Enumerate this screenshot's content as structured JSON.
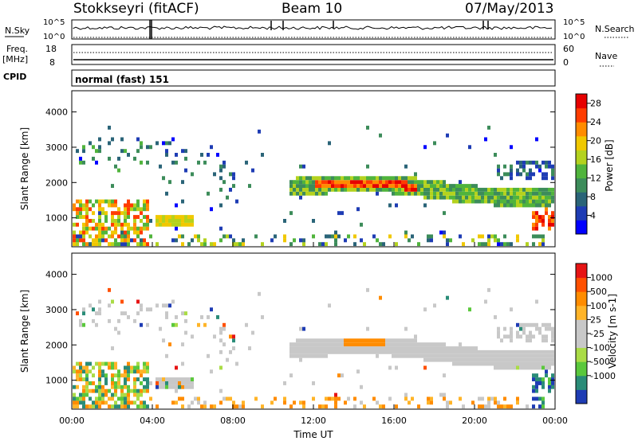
{
  "header": {
    "station": "Stokkseyri (fitACF)",
    "beam": "Beam 10",
    "date": "07/May/2013"
  },
  "side_labels": {
    "nsky": "N.Sky",
    "freq": "Freq.",
    "freq_unit": "[MHz]",
    "cpid": "CPID",
    "nsearch": "N.Search",
    "nave": "Nave"
  },
  "noise_axis": {
    "top": "10^5",
    "bottom": "10^0"
  },
  "freq_axis": {
    "left_top": "18",
    "left_bottom": "8",
    "right_top": "60",
    "right_bottom": "0"
  },
  "cpid_text": "normal (fast) 151",
  "x_axis": {
    "label": "Time UT",
    "ticks": [
      "00:00",
      "04:00",
      "08:00",
      "12:00",
      "16:00",
      "20:00",
      "00:00"
    ]
  },
  "chart_data": [
    {
      "type": "heatmap",
      "name": "power",
      "ylabel": "Slant Range [km]",
      "yticks": [
        "1000",
        "2000",
        "3000",
        "4000"
      ],
      "ylim": [
        180,
        4600
      ],
      "xlim_hours": [
        0,
        24
      ],
      "colorbar": {
        "label": "Power [dB]",
        "ticks": [
          "4",
          "8",
          "12",
          "16",
          "20",
          "24",
          "28"
        ],
        "range": [
          0,
          30
        ],
        "colors": [
          "#0000ff",
          "#1e3cb4",
          "#2a6478",
          "#3c8c5a",
          "#50b43c",
          "#b4d21e",
          "#f0c800",
          "#ff8c00",
          "#ff3c00",
          "#e60000"
        ]
      },
      "features": [
        {
          "desc": "echo band",
          "t_start": 10.8,
          "t_end": 24,
          "range_km": [
            1500,
            2200
          ],
          "peak_db": 26
        },
        {
          "desc": "near range",
          "t_start": 0,
          "t_end": 3.8,
          "range_km": [
            300,
            1700
          ],
          "peak_db": 28
        }
      ]
    },
    {
      "type": "heatmap",
      "name": "velocity",
      "ylabel": "Slant Range [km]",
      "yticks": [
        "1000",
        "2000",
        "3000",
        "4000"
      ],
      "ylim": [
        180,
        4600
      ],
      "xlim_hours": [
        0,
        24
      ],
      "colorbar": {
        "label": "Velocity [m s-1]",
        "ticks": [
          "1000",
          "500",
          "100",
          "25",
          "-25",
          "-100",
          "-500",
          "-1000"
        ],
        "colors": [
          "#1e3cb4",
          "#2a8c78",
          "#5ac83c",
          "#aadc46",
          "#c8c8c8",
          "#c8c8c8",
          "#ffb428",
          "#ff8c00",
          "#ff5000",
          "#e61414"
        ]
      }
    }
  ]
}
